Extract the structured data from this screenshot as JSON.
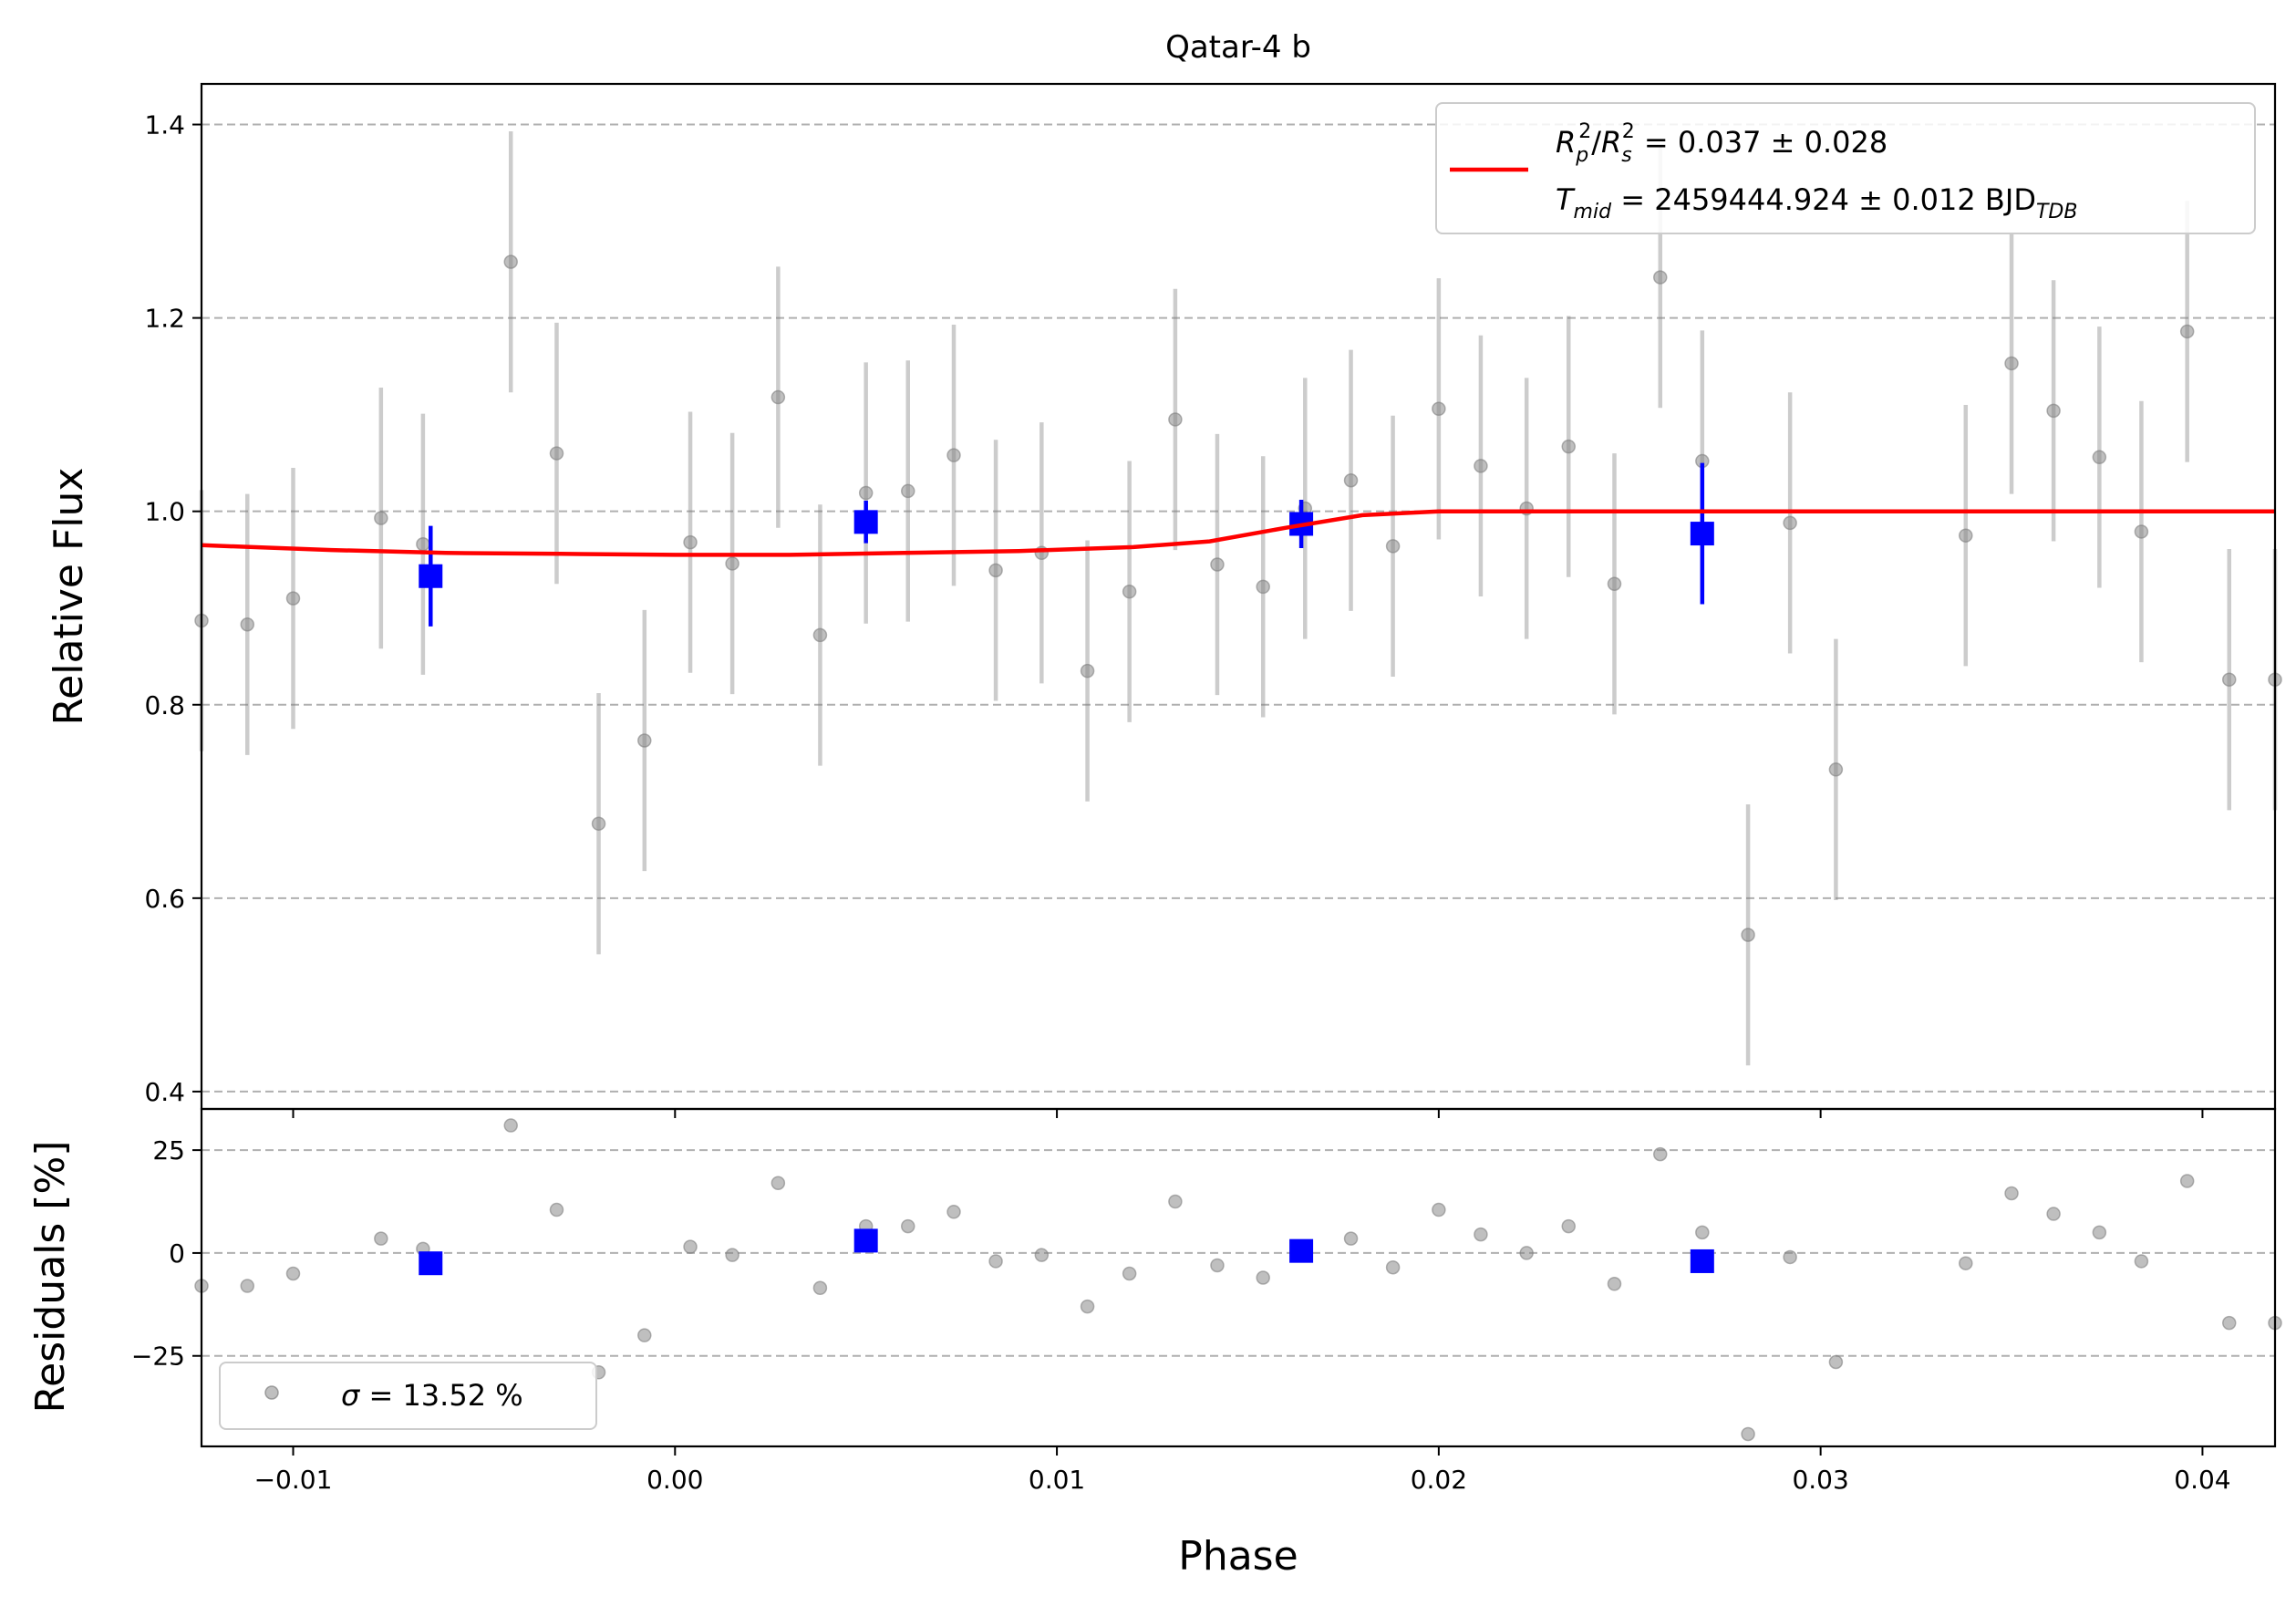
{
  "title": "Qatar-4 b",
  "colors": {
    "model": "#ff0000",
    "binned": "#0000ff",
    "raw": "#808080",
    "grid": "#b0b0b0"
  },
  "chart_data": [
    {
      "type": "scatter",
      "panel": "main",
      "title": "Qatar-4 b",
      "ylabel": "Relative Flux",
      "xlabel": "",
      "xlim": [
        -0.0124,
        0.0419
      ],
      "ylim": [
        0.382,
        1.442
      ],
      "yticks": [
        0.4,
        0.6,
        0.8,
        1.0,
        1.2,
        1.4
      ],
      "ytick_labels": [
        "0.4",
        "0.6",
        "0.8",
        "1.0",
        "1.2",
        "1.4"
      ],
      "grid": "horizontal dashed",
      "legend_position": "upper right",
      "legend": {
        "line1": {
          "sym": "R",
          "sub1": "p",
          "sup1": "2",
          "slash": "/",
          "sym2": "R",
          "sub2": "s",
          "sup2": "2",
          "value": " = 0.037 ± 0.028"
        },
        "line2": {
          "sym": "T",
          "sub": "mid",
          "value": " = 2459444.924 ± 0.012 BJD",
          "unit_sub": "TDB"
        }
      },
      "series": [
        {
          "role": "raw",
          "x": [
            -0.0124,
            -0.0112,
            -0.01,
            -0.0077,
            -0.0066,
            -0.0043,
            -0.0031,
            -0.002,
            -0.0008,
            0.0004,
            0.0015,
            0.0027,
            0.0038,
            0.005,
            0.0061,
            0.0073,
            0.0084,
            0.0096,
            0.0108,
            0.0119,
            0.0131,
            0.0142,
            0.0154,
            0.0165,
            0.0177,
            0.0188,
            0.02,
            0.0211,
            0.0223,
            0.0234,
            0.0246,
            0.0258,
            0.0269,
            0.0281,
            0.0292,
            0.0304,
            0.0338,
            0.035,
            0.0361,
            0.0373,
            0.0384,
            0.0396,
            0.0407,
            0.0419
          ],
          "y": [
            0.887,
            0.883,
            0.91,
            0.993,
            0.966,
            1.258,
            1.06,
            0.677,
            0.763,
            0.968,
            0.946,
            1.118,
            0.872,
            1.019,
            1.021,
            1.058,
            0.939,
            0.957,
            0.835,
            0.917,
            1.095,
            0.945,
            0.922,
            1.003,
            1.032,
            0.964,
            1.106,
            1.047,
            1.003,
            1.067,
            0.925,
            1.242,
            1.052,
            0.562,
            0.988,
            0.733,
            0.975,
            1.153,
            1.104,
            1.056,
            0.979,
            1.186,
            0.826,
            0.826
          ],
          "yerr": 0.135
        },
        {
          "role": "binned",
          "x": [
            -0.0064,
            0.005,
            0.0164,
            0.0269
          ],
          "y": [
            0.933,
            0.989,
            0.987,
            0.977
          ],
          "yerr": [
            0.052,
            0.022,
            0.025,
            0.073
          ]
        },
        {
          "role": "model",
          "x": [
            -0.0124,
            -0.009,
            -0.006,
            -0.003,
            0.0,
            0.003,
            0.006,
            0.009,
            0.012,
            0.014,
            0.016,
            0.018,
            0.02,
            0.021,
            0.023,
            0.0419
          ],
          "y": [
            0.965,
            0.96,
            0.957,
            0.956,
            0.955,
            0.955,
            0.957,
            0.959,
            0.963,
            0.969,
            0.983,
            0.996,
            1.0,
            1.0,
            1.0,
            1.0
          ]
        }
      ]
    },
    {
      "type": "scatter",
      "panel": "residuals",
      "ylabel": "Residuals [%]",
      "xlabel": "Phase",
      "xlim": [
        -0.0124,
        0.0419
      ],
      "ylim": [
        -47,
        35
      ],
      "yticks": [
        -25,
        0,
        25
      ],
      "ytick_labels": [
        "−25",
        "0",
        "25"
      ],
      "xticks": [
        -0.01,
        0.0,
        0.01,
        0.02,
        0.03,
        0.04
      ],
      "xtick_labels": [
        "−0.01",
        "0.00",
        "0.01",
        "0.02",
        "0.03",
        "0.04"
      ],
      "grid": "horizontal dashed",
      "legend_position": "lower left",
      "legend": {
        "sym": "σ",
        "value": " = 13.52 %"
      },
      "series": [
        {
          "role": "raw",
          "x": [
            -0.0124,
            -0.0112,
            -0.01,
            -0.0077,
            -0.0066,
            -0.0043,
            -0.0031,
            -0.002,
            -0.0008,
            0.0004,
            0.0015,
            0.0027,
            0.0038,
            0.005,
            0.0061,
            0.0073,
            0.0084,
            0.0096,
            0.0108,
            0.0119,
            0.0131,
            0.0142,
            0.0154,
            0.0165,
            0.0177,
            0.0188,
            0.02,
            0.0211,
            0.0223,
            0.0234,
            0.0246,
            0.0258,
            0.0269,
            0.0281,
            0.0292,
            0.0304,
            0.0338,
            0.035,
            0.0361,
            0.0373,
            0.0384,
            0.0396,
            0.0407,
            0.0419
          ],
          "y": [
            -8,
            -8,
            -5,
            3.5,
            1,
            31,
            10.5,
            -29,
            -20,
            1.5,
            -0.5,
            17,
            -8.5,
            6.5,
            6.5,
            10,
            -2,
            -0.5,
            -13,
            -5,
            12.5,
            -3,
            -6,
            0,
            3.5,
            -3.5,
            10.5,
            4.5,
            0,
            6.5,
            -7.5,
            24,
            5,
            -44,
            -1,
            -26.5,
            -2.5,
            14.5,
            9.5,
            5,
            -2,
            17.5,
            -17,
            -17
          ]
        },
        {
          "role": "binned",
          "x": [
            -0.0064,
            0.005,
            0.0164,
            0.0269
          ],
          "y": [
            -2.5,
            3,
            0.5,
            -2
          ]
        }
      ]
    }
  ]
}
